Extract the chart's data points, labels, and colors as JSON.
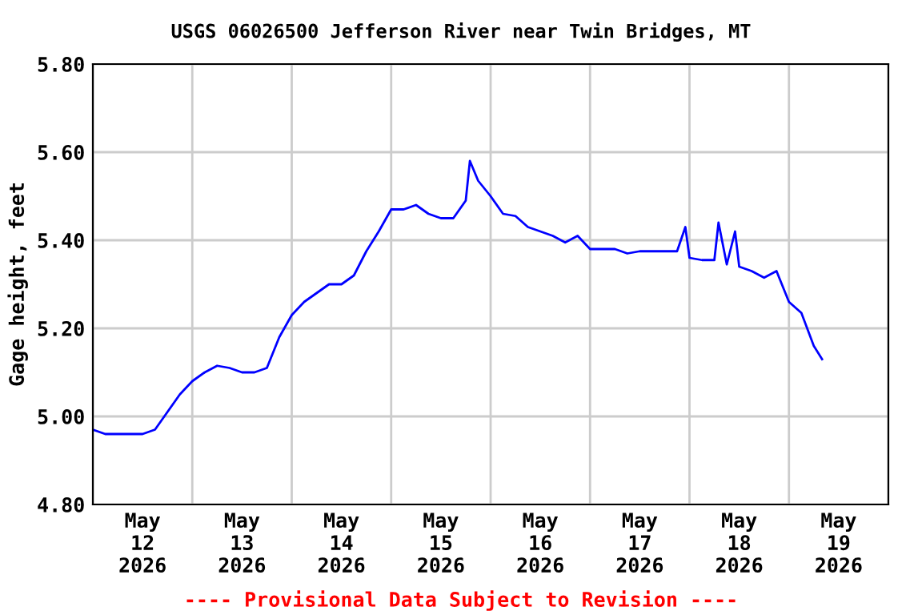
{
  "chart_data": {
    "type": "line",
    "title": "USGS 06026500 Jefferson River near Twin Bridges, MT",
    "ylabel": "Gage height, feet",
    "annotations": [
      "---- Provisional Data Subject to Revision ----"
    ],
    "x": [
      "2026-05-12T00:00",
      "2026-05-12T03:00",
      "2026-05-12T06:00",
      "2026-05-12T09:00",
      "2026-05-12T12:00",
      "2026-05-12T15:00",
      "2026-05-12T18:00",
      "2026-05-12T21:00",
      "2026-05-13T00:00",
      "2026-05-13T03:00",
      "2026-05-13T06:00",
      "2026-05-13T09:00",
      "2026-05-13T12:00",
      "2026-05-13T15:00",
      "2026-05-13T18:00",
      "2026-05-13T21:00",
      "2026-05-14T00:00",
      "2026-05-14T03:00",
      "2026-05-14T06:00",
      "2026-05-14T09:00",
      "2026-05-14T12:00",
      "2026-05-14T15:00",
      "2026-05-14T18:00",
      "2026-05-14T21:00",
      "2026-05-15T00:00",
      "2026-05-15T03:00",
      "2026-05-15T06:00",
      "2026-05-15T09:00",
      "2026-05-15T12:00",
      "2026-05-15T15:00",
      "2026-05-15T18:00",
      "2026-05-15T19:00",
      "2026-05-15T21:00",
      "2026-05-16T00:00",
      "2026-05-16T03:00",
      "2026-05-16T06:00",
      "2026-05-16T09:00",
      "2026-05-16T12:00",
      "2026-05-16T15:00",
      "2026-05-16T18:00",
      "2026-05-16T21:00",
      "2026-05-17T00:00",
      "2026-05-17T03:00",
      "2026-05-17T06:00",
      "2026-05-17T09:00",
      "2026-05-17T12:00",
      "2026-05-17T15:00",
      "2026-05-17T18:00",
      "2026-05-17T21:00",
      "2026-05-17T23:00",
      "2026-05-18T00:00",
      "2026-05-18T03:00",
      "2026-05-18T06:00",
      "2026-05-18T07:00",
      "2026-05-18T09:00",
      "2026-05-18T11:00",
      "2026-05-18T12:00",
      "2026-05-18T15:00",
      "2026-05-18T18:00",
      "2026-05-18T21:00",
      "2026-05-19T00:00",
      "2026-05-19T03:00",
      "2026-05-19T06:00",
      "2026-05-19T08:00"
    ],
    "series": [
      {
        "color": "#0000ff",
        "values": [
          4.97,
          4.96,
          4.96,
          4.96,
          4.96,
          4.97,
          5.01,
          5.05,
          5.08,
          5.1,
          5.115,
          5.11,
          5.1,
          5.1,
          5.11,
          5.18,
          5.23,
          5.26,
          5.28,
          5.3,
          5.3,
          5.32,
          5.375,
          5.42,
          5.47,
          5.47,
          5.48,
          5.46,
          5.45,
          5.45,
          5.49,
          5.58,
          5.535,
          5.5,
          5.46,
          5.455,
          5.43,
          5.42,
          5.41,
          5.395,
          5.41,
          5.38,
          5.38,
          5.38,
          5.37,
          5.375,
          5.375,
          5.375,
          5.375,
          5.43,
          5.36,
          5.355,
          5.355,
          5.44,
          5.345,
          5.42,
          5.34,
          5.33,
          5.315,
          5.33,
          5.26,
          5.235,
          5.16,
          5.13
        ]
      }
    ],
    "xlim": [
      "2026-05-12T00:00",
      "2026-05-20T00:00"
    ],
    "xticks": [
      {
        "value": "2026-05-12T00:00",
        "label": null
      },
      {
        "value": "2026-05-12T12:00",
        "label": "May\n12\n2026"
      },
      {
        "value": "2026-05-13T00:00",
        "label": null
      },
      {
        "value": "2026-05-13T12:00",
        "label": "May\n13\n2026"
      },
      {
        "value": "2026-05-14T00:00",
        "label": null
      },
      {
        "value": "2026-05-14T12:00",
        "label": "May\n14\n2026"
      },
      {
        "value": "2026-05-15T00:00",
        "label": null
      },
      {
        "value": "2026-05-15T12:00",
        "label": "May\n15\n2026"
      },
      {
        "value": "2026-05-16T00:00",
        "label": null
      },
      {
        "value": "2026-05-16T12:00",
        "label": "May\n16\n2026"
      },
      {
        "value": "2026-05-17T00:00",
        "label": null
      },
      {
        "value": "2026-05-17T12:00",
        "label": "May\n17\n2026"
      },
      {
        "value": "2026-05-18T00:00",
        "label": null
      },
      {
        "value": "2026-05-18T12:00",
        "label": "May\n18\n2026"
      },
      {
        "value": "2026-05-19T00:00",
        "label": null
      },
      {
        "value": "2026-05-19T12:00",
        "label": "May\n19\n2026"
      },
      {
        "value": "2026-05-20T00:00",
        "label": null
      }
    ],
    "ylim": [
      4.8,
      5.8
    ],
    "yticks": [
      {
        "value": 4.8,
        "label": "4.80"
      },
      {
        "value": 5.0,
        "label": "5.00"
      },
      {
        "value": 5.2,
        "label": "5.20"
      },
      {
        "value": 5.4,
        "label": "5.40"
      },
      {
        "value": 5.6,
        "label": "5.60"
      },
      {
        "value": 5.8,
        "label": "5.80"
      }
    ],
    "grid": true
  }
}
